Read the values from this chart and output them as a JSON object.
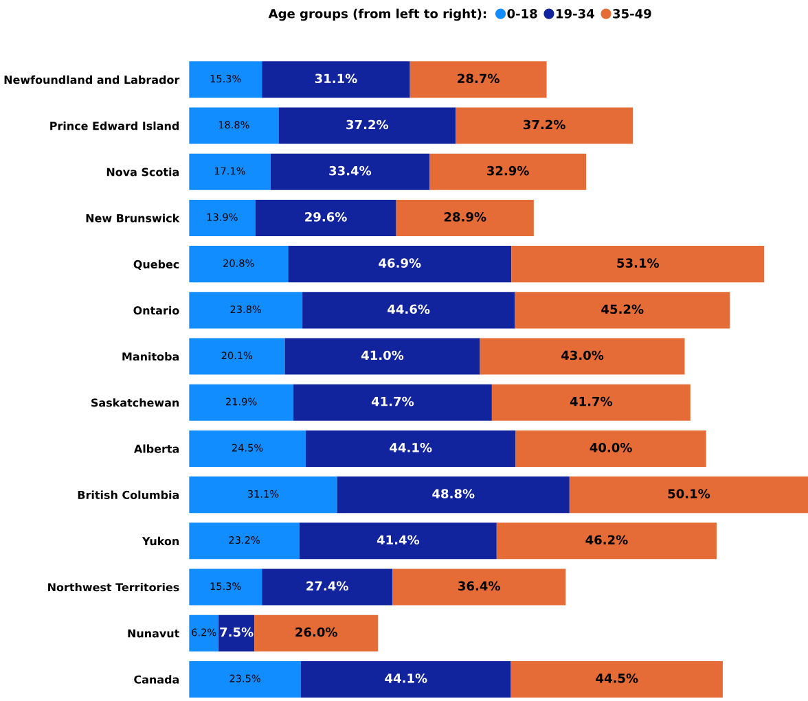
{
  "chart_data": {
    "type": "bar",
    "orientation": "horizontal",
    "stacked": true,
    "legend_title": "Age groups (from left to right):",
    "legend": "top",
    "grid": false,
    "tick_labels": "y",
    "categories": [
      "Newfoundland and Labrador",
      "Prince Edward Island",
      "Nova Scotia",
      "New Brunswick",
      "Quebec",
      "Ontario",
      "Manitoba",
      "Saskatchewan",
      "Alberta",
      "British Columbia",
      "Yukon",
      "Northwest Territories",
      "Nunavut",
      "Canada"
    ],
    "series": [
      {
        "name": "0-18",
        "color": "#118dff",
        "values": [
          15.3,
          18.8,
          17.1,
          13.9,
          20.8,
          23.8,
          20.1,
          21.9,
          24.5,
          31.1,
          23.2,
          15.3,
          6.2,
          23.5
        ],
        "value_labels": [
          "15.3%",
          "18.8%",
          "17.1%",
          "13.9%",
          "20.8%",
          "23.8%",
          "20.1%",
          "21.9%",
          "24.5%",
          "31.1%",
          "23.2%",
          "15.3%",
          "6.2%",
          "23.5%"
        ]
      },
      {
        "name": "19-34",
        "color": "#12239e",
        "values": [
          31.1,
          37.2,
          33.4,
          29.6,
          46.9,
          44.6,
          41.0,
          41.7,
          44.1,
          48.8,
          41.4,
          27.4,
          7.5,
          44.1
        ],
        "value_labels": [
          "31.1%",
          "37.2%",
          "33.4%",
          "29.6%",
          "46.9%",
          "44.6%",
          "41.0%",
          "41.7%",
          "44.1%",
          "48.8%",
          "41.4%",
          "27.4%",
          "7.5%",
          "44.1%"
        ]
      },
      {
        "name": "35-49",
        "color": "#e66c37",
        "values": [
          28.7,
          37.2,
          32.9,
          28.9,
          53.1,
          45.2,
          43.0,
          41.7,
          40.0,
          50.1,
          46.2,
          36.4,
          26.0,
          44.5
        ],
        "value_labels": [
          "28.7%",
          "37.2%",
          "32.9%",
          "28.9%",
          "53.1%",
          "45.2%",
          "43.0%",
          "41.7%",
          "40.0%",
          "50.1%",
          "46.2%",
          "36.4%",
          "26.0%",
          "44.5%"
        ]
      }
    ]
  }
}
